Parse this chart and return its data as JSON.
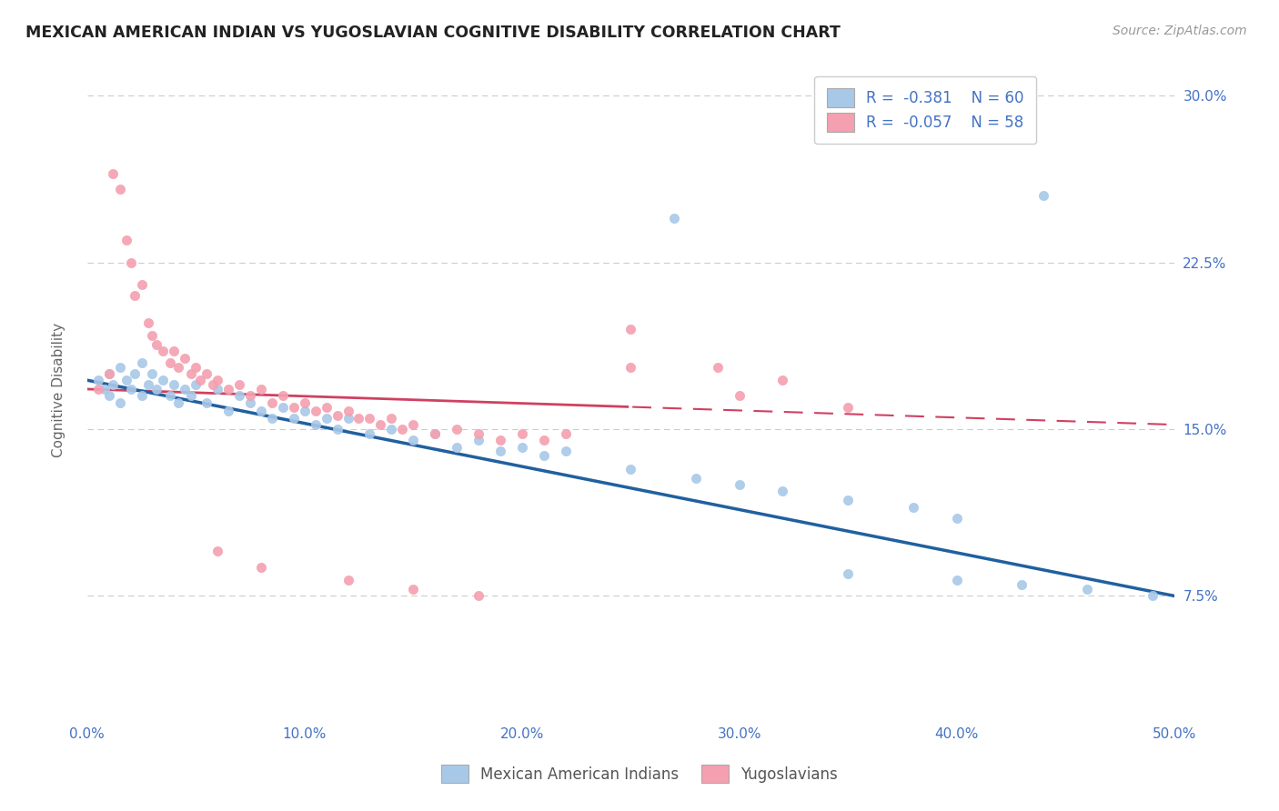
{
  "title": "MEXICAN AMERICAN INDIAN VS YUGOSLAVIAN COGNITIVE DISABILITY CORRELATION CHART",
  "source": "Source: ZipAtlas.com",
  "ylabel": "Cognitive Disability",
  "xlim": [
    0.0,
    0.5
  ],
  "ylim": [
    0.02,
    0.315
  ],
  "yticks": [
    0.075,
    0.15,
    0.225,
    0.3
  ],
  "ytick_labels": [
    "7.5%",
    "15.0%",
    "22.5%",
    "30.0%"
  ],
  "xticks": [
    0.0,
    0.1,
    0.2,
    0.3,
    0.4,
    0.5
  ],
  "xtick_labels": [
    "0.0%",
    "10.0%",
    "20.0%",
    "30.0%",
    "40.0%",
    "50.0%"
  ],
  "blue_color": "#a8c8e8",
  "blue_line_color": "#2060a0",
  "pink_color": "#f4a0b0",
  "pink_line_color": "#d04060",
  "blue_r": -0.381,
  "blue_n": 60,
  "pink_r": -0.057,
  "pink_n": 58,
  "legend_label_blue": "Mexican American Indians",
  "legend_label_pink": "Yugoslavians",
  "background_color": "#ffffff",
  "grid_color": "#cccccc",
  "axis_color": "#4472c4",
  "text_color": "#4472c4",
  "blue_scatter": [
    [
      0.005,
      0.172
    ],
    [
      0.008,
      0.168
    ],
    [
      0.01,
      0.175
    ],
    [
      0.01,
      0.165
    ],
    [
      0.012,
      0.17
    ],
    [
      0.015,
      0.178
    ],
    [
      0.015,
      0.162
    ],
    [
      0.018,
      0.172
    ],
    [
      0.02,
      0.168
    ],
    [
      0.022,
      0.175
    ],
    [
      0.025,
      0.18
    ],
    [
      0.025,
      0.165
    ],
    [
      0.028,
      0.17
    ],
    [
      0.03,
      0.175
    ],
    [
      0.032,
      0.168
    ],
    [
      0.035,
      0.172
    ],
    [
      0.038,
      0.165
    ],
    [
      0.04,
      0.17
    ],
    [
      0.042,
      0.162
    ],
    [
      0.045,
      0.168
    ],
    [
      0.048,
      0.165
    ],
    [
      0.05,
      0.17
    ],
    [
      0.055,
      0.162
    ],
    [
      0.06,
      0.168
    ],
    [
      0.065,
      0.158
    ],
    [
      0.07,
      0.165
    ],
    [
      0.075,
      0.162
    ],
    [
      0.08,
      0.158
    ],
    [
      0.085,
      0.155
    ],
    [
      0.09,
      0.16
    ],
    [
      0.095,
      0.155
    ],
    [
      0.1,
      0.158
    ],
    [
      0.105,
      0.152
    ],
    [
      0.11,
      0.155
    ],
    [
      0.115,
      0.15
    ],
    [
      0.12,
      0.155
    ],
    [
      0.13,
      0.148
    ],
    [
      0.14,
      0.15
    ],
    [
      0.15,
      0.145
    ],
    [
      0.16,
      0.148
    ],
    [
      0.17,
      0.142
    ],
    [
      0.18,
      0.145
    ],
    [
      0.19,
      0.14
    ],
    [
      0.2,
      0.142
    ],
    [
      0.21,
      0.138
    ],
    [
      0.22,
      0.14
    ],
    [
      0.25,
      0.132
    ],
    [
      0.28,
      0.128
    ],
    [
      0.3,
      0.125
    ],
    [
      0.32,
      0.122
    ],
    [
      0.35,
      0.118
    ],
    [
      0.38,
      0.115
    ],
    [
      0.4,
      0.11
    ],
    [
      0.35,
      0.085
    ],
    [
      0.4,
      0.082
    ],
    [
      0.43,
      0.08
    ],
    [
      0.46,
      0.078
    ],
    [
      0.49,
      0.075
    ],
    [
      0.27,
      0.245
    ],
    [
      0.44,
      0.255
    ]
  ],
  "pink_scatter": [
    [
      0.005,
      0.168
    ],
    [
      0.01,
      0.175
    ],
    [
      0.012,
      0.265
    ],
    [
      0.015,
      0.258
    ],
    [
      0.018,
      0.235
    ],
    [
      0.02,
      0.225
    ],
    [
      0.022,
      0.21
    ],
    [
      0.025,
      0.215
    ],
    [
      0.028,
      0.198
    ],
    [
      0.03,
      0.192
    ],
    [
      0.032,
      0.188
    ],
    [
      0.035,
      0.185
    ],
    [
      0.038,
      0.18
    ],
    [
      0.04,
      0.185
    ],
    [
      0.042,
      0.178
    ],
    [
      0.045,
      0.182
    ],
    [
      0.048,
      0.175
    ],
    [
      0.05,
      0.178
    ],
    [
      0.052,
      0.172
    ],
    [
      0.055,
      0.175
    ],
    [
      0.058,
      0.17
    ],
    [
      0.06,
      0.172
    ],
    [
      0.065,
      0.168
    ],
    [
      0.07,
      0.17
    ],
    [
      0.075,
      0.165
    ],
    [
      0.08,
      0.168
    ],
    [
      0.085,
      0.162
    ],
    [
      0.09,
      0.165
    ],
    [
      0.095,
      0.16
    ],
    [
      0.1,
      0.162
    ],
    [
      0.105,
      0.158
    ],
    [
      0.11,
      0.16
    ],
    [
      0.115,
      0.156
    ],
    [
      0.12,
      0.158
    ],
    [
      0.125,
      0.155
    ],
    [
      0.13,
      0.155
    ],
    [
      0.135,
      0.152
    ],
    [
      0.14,
      0.155
    ],
    [
      0.145,
      0.15
    ],
    [
      0.15,
      0.152
    ],
    [
      0.16,
      0.148
    ],
    [
      0.17,
      0.15
    ],
    [
      0.18,
      0.148
    ],
    [
      0.19,
      0.145
    ],
    [
      0.2,
      0.148
    ],
    [
      0.21,
      0.145
    ],
    [
      0.22,
      0.148
    ],
    [
      0.06,
      0.095
    ],
    [
      0.08,
      0.088
    ],
    [
      0.12,
      0.082
    ],
    [
      0.15,
      0.078
    ],
    [
      0.18,
      0.075
    ],
    [
      0.25,
      0.195
    ],
    [
      0.29,
      0.178
    ],
    [
      0.3,
      0.165
    ],
    [
      0.32,
      0.172
    ],
    [
      0.25,
      0.178
    ],
    [
      0.35,
      0.16
    ]
  ]
}
